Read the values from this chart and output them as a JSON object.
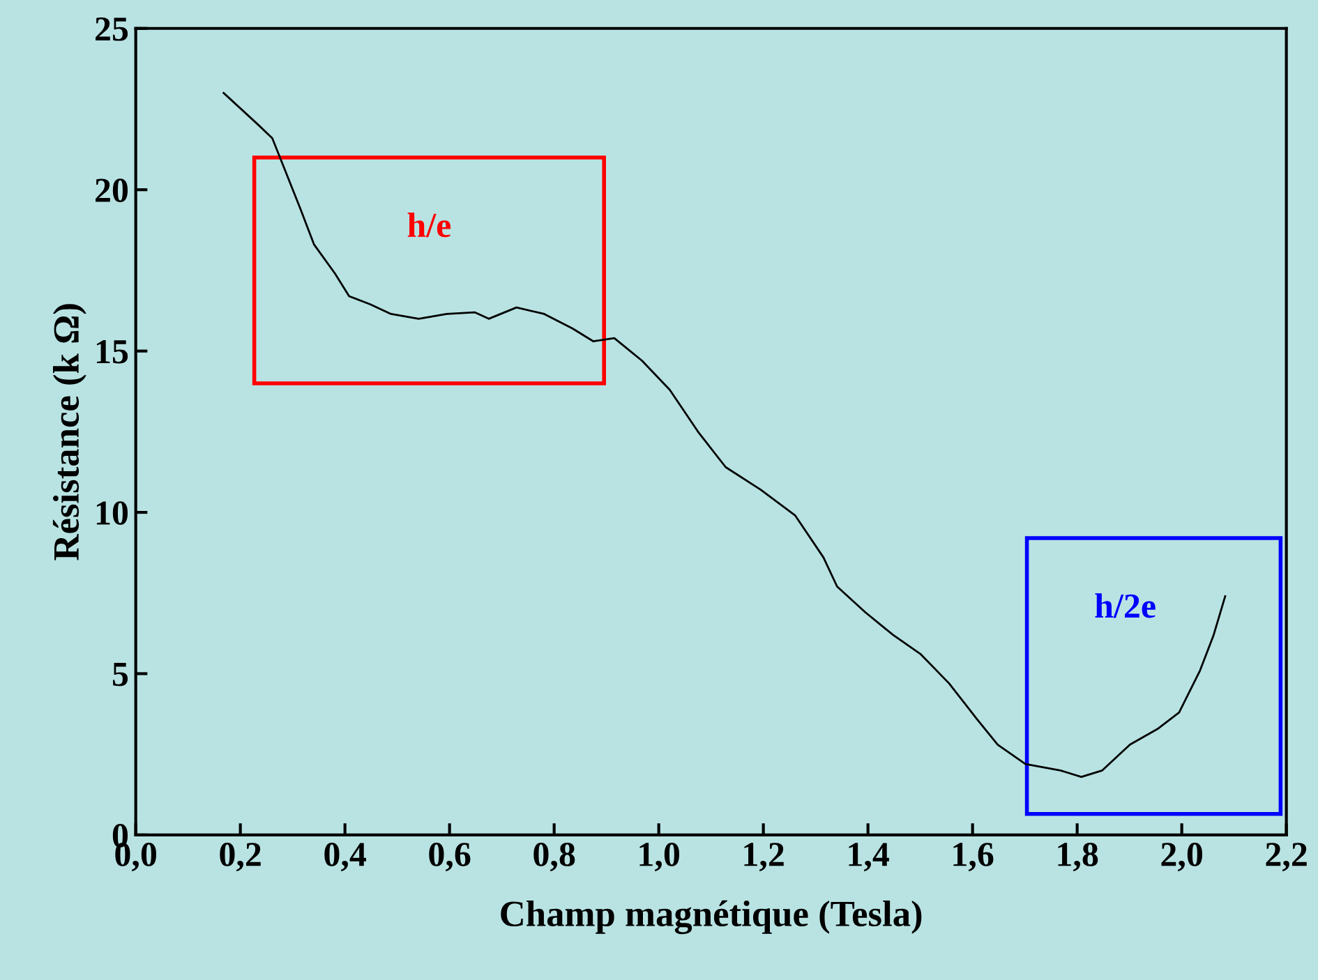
{
  "chart_data": {
    "type": "line",
    "xlabel": "Champ magnétique (Tesla)",
    "ylabel": "Résistance (k Ω)",
    "xlim": [
      0,
      2.2
    ],
    "ylim": [
      0,
      25
    ],
    "xticks": [
      {
        "value": 0,
        "label": "0,0"
      },
      {
        "value": 0.2,
        "label": "0,2"
      },
      {
        "value": 0.4,
        "label": "0,4"
      },
      {
        "value": 0.6,
        "label": "0,6"
      },
      {
        "value": 0.8,
        "label": "0,8"
      },
      {
        "value": 1.0,
        "label": "1,0"
      },
      {
        "value": 1.2,
        "label": "1,2"
      },
      {
        "value": 1.4,
        "label": "1,4"
      },
      {
        "value": 1.6,
        "label": "1,6"
      },
      {
        "value": 1.8,
        "label": "1,8"
      },
      {
        "value": 2.0,
        "label": "2,0"
      },
      {
        "value": 2.2,
        "label": "2,2"
      }
    ],
    "yticks": [
      0,
      5,
      10,
      15,
      20,
      25
    ],
    "grid": false,
    "marker": "none",
    "line_style": "solid",
    "series": [
      {
        "color": "#000000",
        "x": [
          0.168,
          0.235,
          0.261,
          0.288,
          0.315,
          0.341,
          0.381,
          0.408,
          0.448,
          0.488,
          0.541,
          0.595,
          0.648,
          0.675,
          0.728,
          0.781,
          0.835,
          0.875,
          0.915,
          0.968,
          1.021,
          1.075,
          1.128,
          1.195,
          1.261,
          1.315,
          1.341,
          1.395,
          1.448,
          1.501,
          1.555,
          1.608,
          1.648,
          1.701,
          1.768,
          1.808,
          1.848,
          1.901,
          1.955,
          1.995,
          2.035,
          2.061,
          2.083
        ],
        "values": [
          23.0,
          22.0,
          21.6,
          20.5,
          19.4,
          18.3,
          17.4,
          16.7,
          16.45,
          16.15,
          16.0,
          16.15,
          16.2,
          16.0,
          16.35,
          16.15,
          15.7,
          15.3,
          15.4,
          14.7,
          13.8,
          12.5,
          11.4,
          10.7,
          9.9,
          8.6,
          7.7,
          6.9,
          6.2,
          5.6,
          4.7,
          3.6,
          2.8,
          2.2,
          2.0,
          1.8,
          2.0,
          2.8,
          3.3,
          3.8,
          5.1,
          6.2,
          7.4
        ]
      }
    ],
    "annotations": [
      "h/e",
      "h/2e"
    ]
  }
}
